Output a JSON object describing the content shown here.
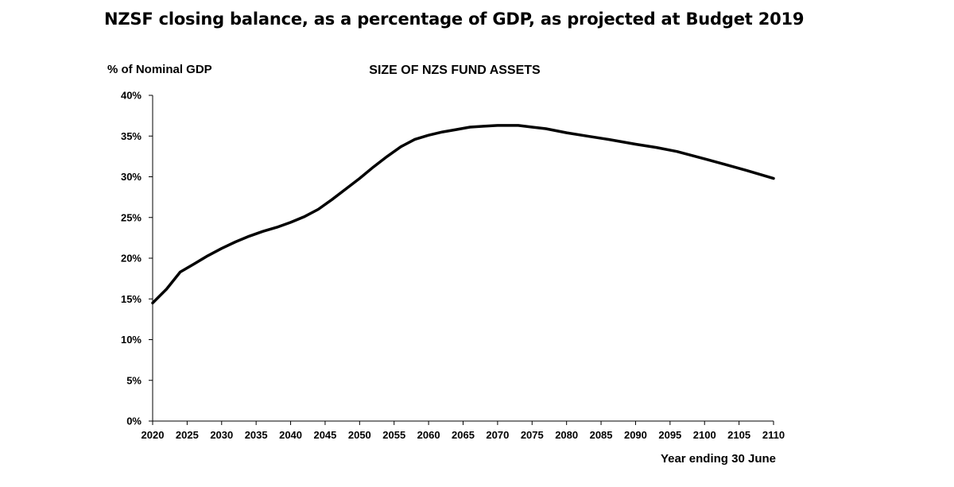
{
  "page": {
    "title": "NZSF closing balance, as a percentage of GDP, as projected at Budget 2019"
  },
  "chart_data": {
    "type": "line",
    "title": "SIZE OF NZS FUND ASSETS",
    "ylabel": "% of Nominal GDP",
    "xlabel": "Year ending 30 June",
    "xlim": [
      2020,
      2110
    ],
    "ylim": [
      0,
      40
    ],
    "x_ticks": [
      2020,
      2025,
      2030,
      2035,
      2040,
      2045,
      2050,
      2055,
      2060,
      2065,
      2070,
      2075,
      2080,
      2085,
      2090,
      2095,
      2100,
      2105,
      2110
    ],
    "x_tick_labels": [
      "2020",
      "2025",
      "2030",
      "2035",
      "2040",
      "2045",
      "2050",
      "2055",
      "2060",
      "2065",
      "2070",
      "2075",
      "2080",
      "2085",
      "2090",
      "2095",
      "2100",
      "2105",
      "2110"
    ],
    "y_ticks": [
      0,
      5,
      10,
      15,
      20,
      25,
      30,
      35,
      40
    ],
    "y_tick_labels": [
      "0%",
      "5%",
      "10%",
      "15%",
      "20%",
      "25%",
      "30%",
      "35%",
      "40%"
    ],
    "grid": false,
    "legend": "none",
    "line_color": "#000000",
    "series": [
      {
        "x": [
          2020,
          2022,
          2024,
          2026,
          2028,
          2030,
          2032,
          2034,
          2036,
          2038,
          2040,
          2042,
          2044,
          2046,
          2048,
          2050,
          2052,
          2054,
          2056,
          2058,
          2060,
          2062,
          2064,
          2066,
          2068,
          2070,
          2072,
          2073,
          2075,
          2077,
          2080,
          2083,
          2086,
          2090,
          2093,
          2096,
          2100,
          2103,
          2106,
          2110
        ],
        "y": [
          14.5,
          16.2,
          18.3,
          19.3,
          20.3,
          21.2,
          22.0,
          22.7,
          23.3,
          23.8,
          24.4,
          25.1,
          26.0,
          27.2,
          28.5,
          29.8,
          31.2,
          32.5,
          33.7,
          34.6,
          35.1,
          35.5,
          35.8,
          36.1,
          36.2,
          36.3,
          36.3,
          36.3,
          36.1,
          35.9,
          35.4,
          35.0,
          34.6,
          34.0,
          33.6,
          33.1,
          32.2,
          31.5,
          30.8,
          29.8
        ]
      }
    ]
  }
}
